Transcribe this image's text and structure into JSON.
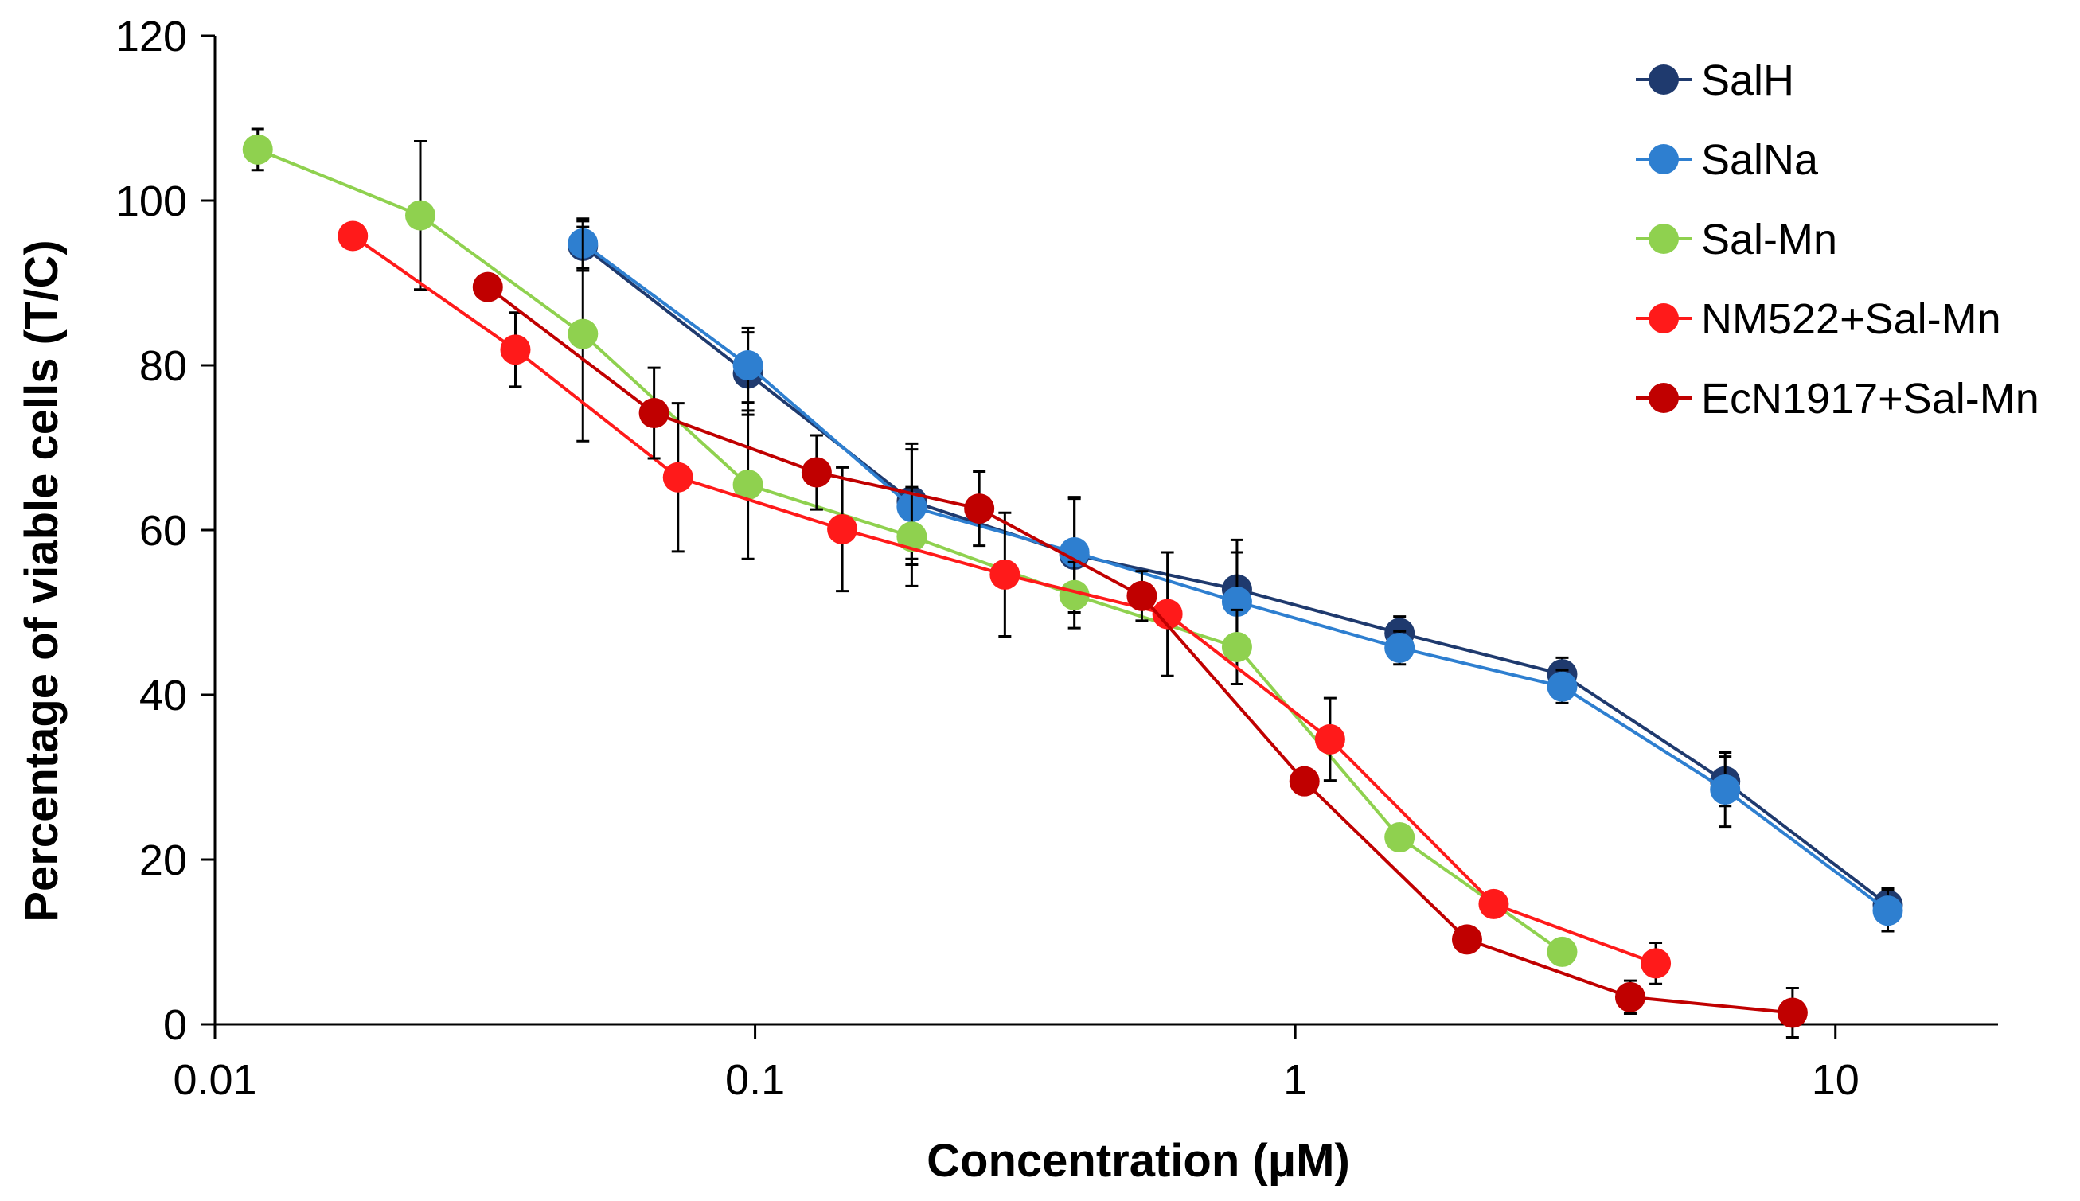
{
  "chart_data": {
    "type": "line",
    "title": "",
    "xlabel": "Concentration (μM)",
    "ylabel": "Percentage of viable cells (T/C)",
    "xscale": "log",
    "xlim": [
      0.01,
      20
    ],
    "ylim": [
      0,
      120
    ],
    "x_ticks": [
      0.01,
      0.1,
      1,
      10
    ],
    "x_tick_labels": [
      "0.01",
      "0.1",
      "1",
      "10"
    ],
    "y_ticks": [
      0,
      20,
      40,
      60,
      80,
      100,
      120
    ],
    "y_tick_labels": [
      "0",
      "20",
      "40",
      "60",
      "80",
      "100",
      "120"
    ],
    "grid": false,
    "legend_position": "top-right",
    "series": [
      {
        "name": "SalH",
        "color": "#1f3a6e",
        "x": [
          0.048,
          0.097,
          0.195,
          0.39,
          0.78,
          1.56,
          3.12,
          6.25,
          12.5
        ],
        "y": [
          94.5,
          79,
          63.5,
          57,
          52.8,
          47.5,
          42.5,
          29.5,
          14.5
        ],
        "err": [
          3,
          5,
          7,
          7,
          6,
          2,
          2,
          3,
          2
        ]
      },
      {
        "name": "SalNa",
        "color": "#2e7fd0",
        "x": [
          0.048,
          0.097,
          0.195,
          0.39,
          0.78,
          1.56,
          3.12,
          6.25,
          12.5
        ],
        "y": [
          94.8,
          80,
          62.8,
          57.3,
          51.3,
          45.7,
          41,
          28.5,
          13.8
        ],
        "err": [
          3,
          4.5,
          7,
          6.5,
          6,
          2,
          2,
          4.5,
          2.5
        ]
      },
      {
        "name": "Sal-Mn",
        "color": "#8fd14f",
        "x": [
          0.012,
          0.024,
          0.048,
          0.097,
          0.195,
          0.39,
          0.78,
          1.56,
          3.12
        ],
        "y": [
          106.2,
          98.2,
          83.8,
          65.5,
          59.2,
          52.1,
          45.8,
          22.7,
          8.8
        ],
        "err": [
          2.5,
          9,
          13,
          9,
          6,
          4,
          4.5,
          1,
          1
        ]
      },
      {
        "name": "NM522+Sal-Mn",
        "color": "#ff1a1a",
        "x": [
          0.018,
          0.036,
          0.072,
          0.145,
          0.29,
          0.58,
          1.16,
          2.33,
          4.65
        ],
        "y": [
          95.7,
          81.9,
          66.4,
          60.1,
          54.6,
          49.8,
          34.6,
          14.6,
          7.4
        ],
        "err": [
          1,
          4.5,
          9,
          7.5,
          7.5,
          7.5,
          5,
          1,
          2.5
        ]
      },
      {
        "name": "EcN1917+Sal-Mn",
        "color": "#c00000",
        "x": [
          0.032,
          0.065,
          0.13,
          0.26,
          0.52,
          1.04,
          2.08,
          4.17,
          8.33
        ],
        "y": [
          89.5,
          74.2,
          67.0,
          62.6,
          52.0,
          29.5,
          10.3,
          3.3,
          1.4
        ],
        "err": [
          1.5,
          5.5,
          4.5,
          4.5,
          3,
          1.5,
          1,
          2,
          3
        ]
      }
    ]
  }
}
